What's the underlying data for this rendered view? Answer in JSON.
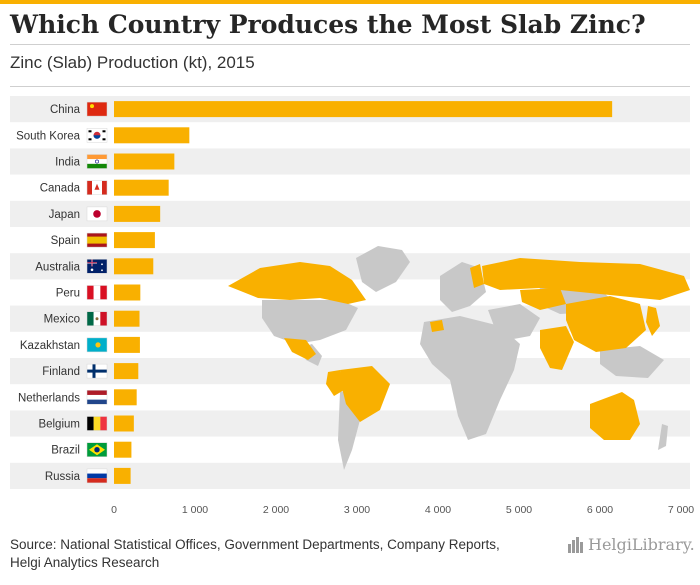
{
  "header": {
    "title": "Which Country Produces the Most Slab Zinc?",
    "subtitle": "Zinc (Slab) Production (kt), 2015"
  },
  "footer": {
    "source_line1": "Source: National Statistical Offices, Government Departments, Company Reports,",
    "source_line2": "Helgi Analytics Research",
    "logo_text": "HelgiLibrary."
  },
  "colors": {
    "bar": "#f9b000",
    "row_band": "#efefef",
    "map_highlight": "#f9b000",
    "map_other": "#c8c8c8"
  },
  "chart_data": {
    "type": "bar",
    "orientation": "horizontal",
    "categories": [
      "China",
      "South Korea",
      "India",
      "Canada",
      "Japan",
      "Spain",
      "Australia",
      "Peru",
      "Mexico",
      "Kazakhstan",
      "Finland",
      "Netherlands",
      "Belgium",
      "Brazil",
      "Russia"
    ],
    "values": [
      6150,
      930,
      745,
      675,
      570,
      505,
      485,
      325,
      315,
      320,
      300,
      280,
      245,
      215,
      205
    ],
    "xlim": [
      0,
      7000
    ],
    "xticks": [
      0,
      1000,
      2000,
      3000,
      4000,
      5000,
      6000,
      7000
    ],
    "xtick_labels": [
      "0",
      "1 000",
      "2 000",
      "3 000",
      "4 000",
      "5 000",
      "6 000",
      "7 000"
    ],
    "grid": false,
    "legend": "none",
    "flags": [
      "china-flag-icon",
      "south-korea-flag-icon",
      "india-flag-icon",
      "canada-flag-icon",
      "japan-flag-icon",
      "spain-flag-icon",
      "australia-flag-icon",
      "peru-flag-icon",
      "mexico-flag-icon",
      "kazakhstan-flag-icon",
      "finland-flag-icon",
      "netherlands-flag-icon",
      "belgium-flag-icon",
      "brazil-flag-icon",
      "russia-flag-icon"
    ]
  }
}
